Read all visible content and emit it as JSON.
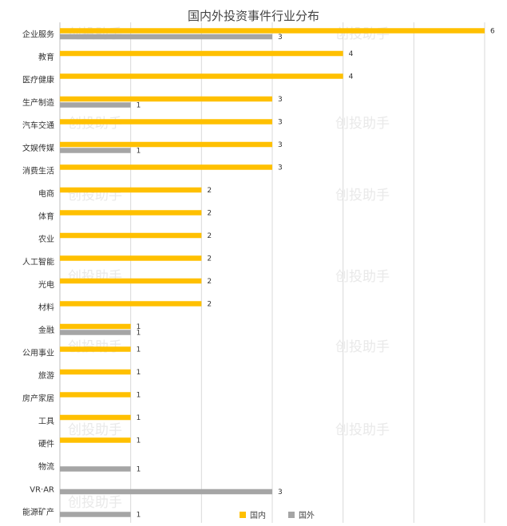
{
  "chart_data": {
    "type": "bar",
    "orientation": "horizontal",
    "title": "国内外投资事件行业分布",
    "categories": [
      "企业服务",
      "教育",
      "医疗健康",
      "生产制造",
      "汽车交通",
      "文娱传媒",
      "消费生活",
      "电商",
      "体育",
      "农业",
      "人工智能",
      "光电",
      "材料",
      "金融",
      "公用事业",
      "旅游",
      "房产家居",
      "工具",
      "硬件",
      "物流",
      "VR·AR",
      "能源矿产"
    ],
    "series": [
      {
        "name": "国内",
        "color": "#FFC000",
        "values": [
          6,
          4,
          4,
          3,
          3,
          3,
          3,
          2,
          2,
          2,
          2,
          2,
          2,
          1,
          1,
          1,
          1,
          1,
          1,
          null,
          null,
          null
        ]
      },
      {
        "name": "国外",
        "color": "#A5A5A5",
        "values": [
          3,
          null,
          null,
          1,
          null,
          1,
          null,
          null,
          null,
          null,
          null,
          null,
          null,
          1,
          null,
          null,
          null,
          null,
          null,
          1,
          3,
          1
        ]
      }
    ],
    "xlim": [
      0,
      6
    ],
    "grid": true,
    "legend": "bottom-right"
  },
  "watermark": "创投助手"
}
